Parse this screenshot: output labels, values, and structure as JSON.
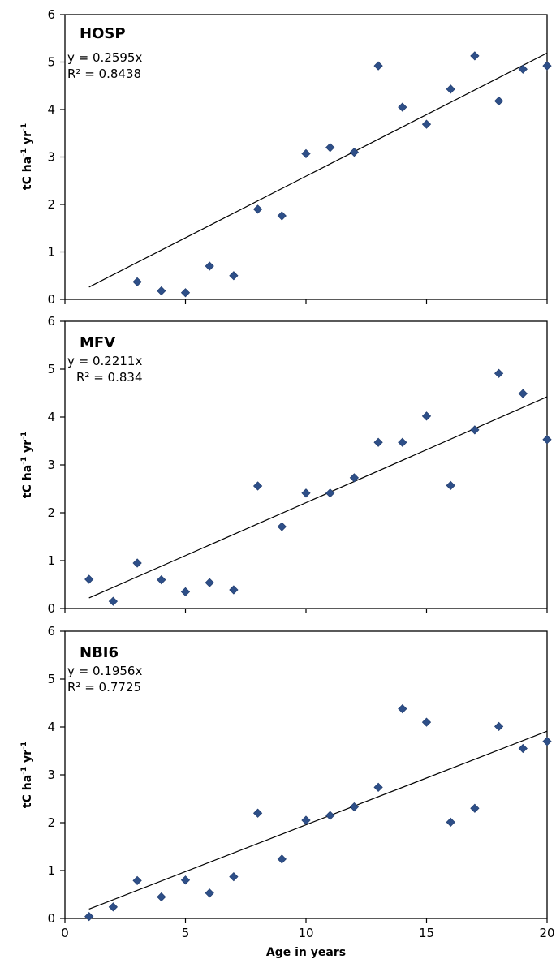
{
  "chart_data": [
    {
      "type": "scatter",
      "title": "HOSP",
      "ylabel": "tC ha-1 yr-1",
      "xlabel": "",
      "xlim": [
        0,
        20
      ],
      "ylim": [
        0,
        6
      ],
      "x_ticks": [
        0,
        5,
        10,
        15,
        20
      ],
      "y_ticks": [
        0,
        1,
        2,
        3,
        4,
        5,
        6
      ],
      "x_tick_labels_shown": false,
      "grid": false,
      "equation": "y = 0.2595x",
      "r_squared": "R² = 0.8438",
      "trendline": {
        "slope": 0.2595,
        "x_range": [
          1,
          20
        ]
      },
      "marker_color": "#2e4f88",
      "series": [
        {
          "points": [
            [
              3,
              0.37
            ],
            [
              4,
              0.18
            ],
            [
              5,
              0.14
            ],
            [
              6,
              0.7
            ],
            [
              7,
              0.5
            ],
            [
              8,
              1.9
            ],
            [
              9,
              1.76
            ],
            [
              10,
              3.07
            ],
            [
              11,
              3.2
            ],
            [
              12,
              3.1
            ],
            [
              13,
              4.92
            ],
            [
              14,
              4.05
            ],
            [
              15,
              3.69
            ],
            [
              16,
              4.43
            ],
            [
              17,
              5.13
            ],
            [
              18,
              4.18
            ],
            [
              19,
              4.85
            ],
            [
              20,
              4.92
            ]
          ]
        }
      ]
    },
    {
      "type": "scatter",
      "title": "MFV",
      "ylabel": "tC ha-1 yr-1",
      "xlabel": "",
      "xlim": [
        0,
        20
      ],
      "ylim": [
        0,
        6
      ],
      "x_ticks": [
        0,
        5,
        10,
        15,
        20
      ],
      "y_ticks": [
        0,
        1,
        2,
        3,
        4,
        5,
        6
      ],
      "x_tick_labels_shown": false,
      "grid": false,
      "equation": "y = 0.2211x",
      "r_squared": "R² = 0.834",
      "trendline": {
        "slope": 0.2211,
        "x_range": [
          1,
          20
        ]
      },
      "marker_color": "#2e4f88",
      "series": [
        {
          "points": [
            [
              1,
              0.61
            ],
            [
              2,
              0.15
            ],
            [
              3,
              0.95
            ],
            [
              4,
              0.6
            ],
            [
              5,
              0.35
            ],
            [
              6,
              0.54
            ],
            [
              7,
              0.39
            ],
            [
              8,
              2.56
            ],
            [
              9,
              1.71
            ],
            [
              10,
              2.41
            ],
            [
              11,
              2.41
            ],
            [
              12,
              2.73
            ],
            [
              13,
              3.47
            ],
            [
              14,
              3.47
            ],
            [
              15,
              4.02
            ],
            [
              16,
              2.57
            ],
            [
              17,
              3.73
            ],
            [
              18,
              4.91
            ],
            [
              19,
              4.49
            ],
            [
              20,
              3.53
            ]
          ]
        }
      ]
    },
    {
      "type": "scatter",
      "title": "NBI6",
      "ylabel": "tC ha-1 yr-1",
      "xlabel": "Age in years",
      "xlim": [
        0,
        20
      ],
      "ylim": [
        0,
        6
      ],
      "x_ticks": [
        0,
        5,
        10,
        15,
        20
      ],
      "y_ticks": [
        0,
        1,
        2,
        3,
        4,
        5,
        6
      ],
      "x_tick_labels_shown": true,
      "grid": false,
      "equation": "y = 0.1956x",
      "r_squared": "R² = 0.7725",
      "trendline": {
        "slope": 0.1956,
        "x_range": [
          1,
          20
        ]
      },
      "marker_color": "#2e4f88",
      "series": [
        {
          "points": [
            [
              1,
              0.04
            ],
            [
              2,
              0.24
            ],
            [
              3,
              0.79
            ],
            [
              4,
              0.45
            ],
            [
              5,
              0.8
            ],
            [
              6,
              0.53
            ],
            [
              7,
              0.87
            ],
            [
              8,
              2.2
            ],
            [
              9,
              1.24
            ],
            [
              10,
              2.05
            ],
            [
              11,
              2.15
            ],
            [
              12,
              2.33
            ],
            [
              13,
              2.74
            ],
            [
              14,
              4.38
            ],
            [
              15,
              4.1
            ],
            [
              16,
              2.01
            ],
            [
              17,
              2.3
            ],
            [
              18,
              4.01
            ],
            [
              19,
              3.55
            ],
            [
              20,
              3.7
            ]
          ]
        }
      ]
    }
  ]
}
